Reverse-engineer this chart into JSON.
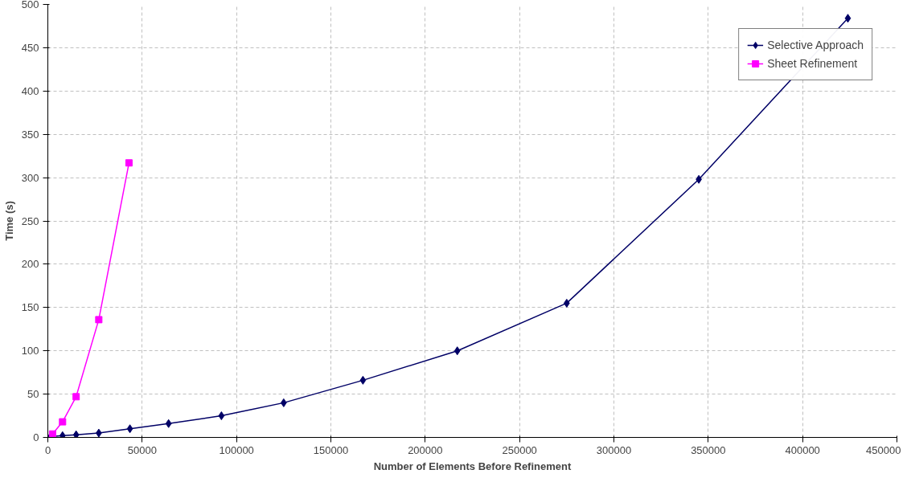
{
  "chart_data": {
    "type": "line",
    "xlabel": "Number of Elements Before Refinement",
    "ylabel": "Time (s)",
    "xlim": [
      0,
      450000
    ],
    "xticks": [
      0,
      50000,
      100000,
      150000,
      200000,
      250000,
      300000,
      350000,
      400000,
      450000
    ],
    "ylim": [
      0,
      500
    ],
    "yticks": [
      0,
      50,
      100,
      150,
      200,
      250,
      300,
      350,
      400,
      450,
      500
    ],
    "grid": true,
    "legend": "top right",
    "line_style": "solid",
    "series": [
      {
        "name": "Selective Approach",
        "color": "#000066",
        "marker": "diamond",
        "x": [
          1400,
          7800,
          15000,
          27000,
          43500,
          64000,
          92000,
          125000,
          167000,
          217000,
          275000,
          345000,
          424000
        ],
        "values": [
          1,
          2,
          3,
          5,
          10,
          16,
          25,
          40,
          66,
          100,
          155,
          298,
          484
        ]
      },
      {
        "name": "Sheet Refinement",
        "color": "#ff00ff",
        "marker": "square",
        "x": [
          2500,
          7800,
          15000,
          27000,
          43000
        ],
        "values": [
          4,
          18,
          47,
          136,
          317
        ]
      }
    ]
  }
}
